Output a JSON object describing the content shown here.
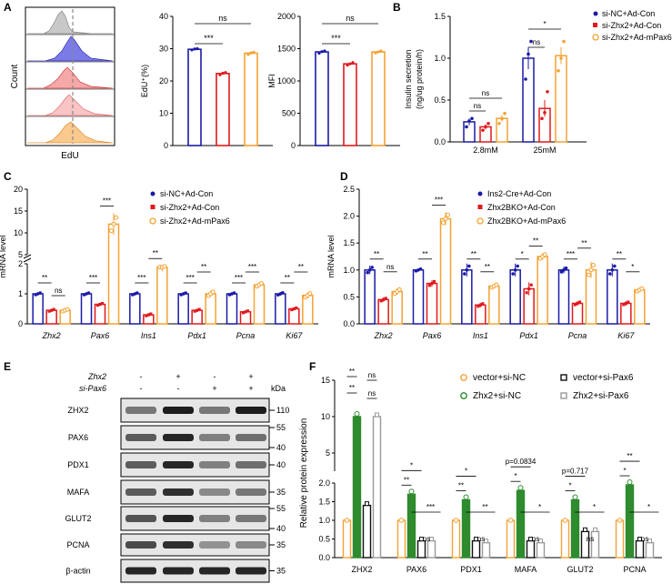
{
  "panel_letters": [
    "A",
    "B",
    "C",
    "D",
    "E",
    "F"
  ],
  "panel_a": {
    "hist_xlabel": "EdU",
    "hist_ylabel": "Count"
  },
  "chart_data": [
    {
      "id": "A_edu",
      "type": "bar",
      "ylabel": "EdU⁺(%)",
      "ylim": [
        0,
        40
      ],
      "yticks": [
        "0",
        "10",
        "20",
        "30",
        "40"
      ],
      "series": [
        {
          "name": "si-NC+Ad-Con",
          "color": "#1a1aa6",
          "value": 29.8,
          "err": 0.3,
          "points": [
            29.6,
            29.9,
            30.0
          ]
        },
        {
          "name": "si-Zhx2+Ad-Con",
          "color": "#e0191c",
          "value": 22.3,
          "err": 0.4,
          "points": [
            21.9,
            22.4,
            22.6
          ]
        },
        {
          "name": "si-Zhx2+Ad-mPax6",
          "color": "#f4a233",
          "value": 28.6,
          "err": 0.4,
          "points": [
            28.2,
            28.7,
            28.9
          ]
        }
      ],
      "sig": [
        {
          "from": 0,
          "to": 1,
          "label": "***"
        },
        {
          "from": 0,
          "to": 2,
          "label": "ns"
        }
      ]
    },
    {
      "id": "A_mfi",
      "type": "bar",
      "ylabel": "MFI",
      "ylim": [
        0,
        2000
      ],
      "yticks": [
        "0",
        "500",
        "1000",
        "1500",
        "2000"
      ],
      "series": [
        {
          "name": "si-NC+Ad-Con",
          "color": "#1a1aa6",
          "value": 1450,
          "err": 20,
          "points": [
            1430,
            1455,
            1465
          ]
        },
        {
          "name": "si-Zhx2+Ad-Con",
          "color": "#e0191c",
          "value": 1265,
          "err": 20,
          "points": [
            1245,
            1265,
            1285
          ]
        },
        {
          "name": "si-Zhx2+Ad-mPax6",
          "color": "#f4a233",
          "value": 1450,
          "err": 15,
          "points": [
            1435,
            1450,
            1465
          ]
        }
      ],
      "sig": [
        {
          "from": 0,
          "to": 1,
          "label": "***"
        },
        {
          "from": 0,
          "to": 2,
          "label": "ns"
        }
      ]
    },
    {
      "id": "B",
      "type": "bar",
      "ylabel": "Insulin secretion\n(ng/ug protein/h)",
      "ylim": [
        0,
        1.5
      ],
      "yticks": [
        "0.0",
        "0.5",
        "1.0",
        "1.5"
      ],
      "categories": [
        "2.8mM",
        "25mM"
      ],
      "series": [
        {
          "name": "si-NC+Ad-Con",
          "color": "#1a1aa6",
          "values": [
            0.24,
            1.0
          ],
          "err": [
            0.04,
            0.13
          ],
          "points": [
            [
              0.18,
              0.25,
              0.28
            ],
            [
              0.75,
              1.05,
              1.2
            ]
          ]
        },
        {
          "name": "si-Zhx2+Ad-Con",
          "color": "#e0191c",
          "values": [
            0.18,
            0.4
          ],
          "err": [
            0.03,
            0.1
          ],
          "points": [
            [
              0.14,
              0.18,
              0.22
            ],
            [
              0.28,
              0.35,
              0.6
            ]
          ]
        },
        {
          "name": "si-Zhx2+Ad-mPax6",
          "color": "#f4a233",
          "values": [
            0.28,
            1.03
          ],
          "err": [
            0.04,
            0.1
          ],
          "points": [
            [
              0.22,
              0.28,
              0.34
            ],
            [
              0.85,
              1.0,
              1.2
            ]
          ]
        }
      ],
      "legend": [
        "si-NC+Ad-Con",
        "si-Zhx2+Ad-Con",
        "si-Zhx2+Ad-mPax6"
      ],
      "sig_labels": [
        "ns",
        "ns",
        "ns",
        "*"
      ]
    },
    {
      "id": "C",
      "type": "bar",
      "ylabel": "mRNA level",
      "ylim_low": [
        0,
        2
      ],
      "ylim_high": [
        5,
        20
      ],
      "yticks_low": [
        "0",
        "1",
        "2"
      ],
      "yticks_high": [
        "5",
        "10",
        "15",
        "20"
      ],
      "categories": [
        "Zhx2",
        "Pax6",
        "Ins1",
        "Pdx1",
        "Pcna",
        "Ki67"
      ],
      "series": [
        {
          "name": "si-NC+Ad-Con",
          "color": "#1a1aa6",
          "values": [
            1.0,
            1.0,
            1.0,
            1.0,
            1.0,
            1.0
          ],
          "err": [
            0.05,
            0.05,
            0.05,
            0.05,
            0.05,
            0.06
          ]
        },
        {
          "name": "si-Zhx2+Ad-Con",
          "color": "#e0191c",
          "values": [
            0.45,
            0.65,
            0.3,
            0.45,
            0.4,
            0.5
          ],
          "err": [
            0.05,
            0.05,
            0.05,
            0.05,
            0.05,
            0.05
          ]
        },
        {
          "name": "si-Zhx2+Ad-mPax6",
          "color": "#f4a233",
          "values": [
            0.45,
            12.0,
            2.1,
            1.0,
            1.3,
            0.95
          ],
          "err": [
            0.05,
            2.5,
            0.35,
            0.1,
            0.08,
            0.1
          ]
        }
      ],
      "legend": [
        "si-NC+Ad-Con",
        "si-Zhx2+Ad-Con",
        "si-Zhx2+Ad-mPax6"
      ],
      "sig": [
        [
          "**",
          "ns"
        ],
        [
          "***",
          "***"
        ],
        [
          "***",
          "**"
        ],
        [
          "***",
          "**"
        ],
        [
          "***",
          "***"
        ],
        [
          "**",
          "**"
        ]
      ]
    },
    {
      "id": "D",
      "type": "bar",
      "ylabel": "mRNA level",
      "ylim": [
        0,
        2.5
      ],
      "yticks": [
        "0.0",
        "0.5",
        "1.0",
        "1.5",
        "2.0",
        "2.5"
      ],
      "categories": [
        "Zhx2",
        "Pax6",
        "Ins1",
        "Pdx1",
        "Pcna",
        "Ki67"
      ],
      "series": [
        {
          "name": "Ins2-Cre+Ad-Con",
          "color": "#1a1aa6",
          "values": [
            1.0,
            1.0,
            1.0,
            1.0,
            1.0,
            1.0
          ],
          "err": [
            0.08,
            0.03,
            0.12,
            0.12,
            0.06,
            0.12
          ]
        },
        {
          "name": "Zhx2BKO+Ad-Con",
          "color": "#e0191c",
          "values": [
            0.45,
            0.75,
            0.35,
            0.65,
            0.38,
            0.38
          ],
          "err": [
            0.04,
            0.06,
            0.04,
            0.12,
            0.04,
            0.04
          ]
        },
        {
          "name": "Zhx2BKO+Ad-mPax6",
          "color": "#f4a233",
          "values": [
            0.6,
            1.95,
            0.7,
            1.25,
            1.0,
            0.63
          ],
          "err": [
            0.06,
            0.12,
            0.04,
            0.06,
            0.15,
            0.04
          ]
        }
      ],
      "legend": [
        "Ins2-Cre+Ad-Con",
        "Zhx2BKO+Ad-Con",
        "Zhx2BKO+Ad-mPax6"
      ],
      "sig": [
        [
          "**",
          "ns"
        ],
        [
          "**",
          "***"
        ],
        [
          "**",
          "**"
        ],
        [
          "*",
          "**"
        ],
        [
          "***",
          "**"
        ],
        [
          "**",
          "*"
        ]
      ]
    },
    {
      "id": "F",
      "type": "bar",
      "ylabel": "Relative protein expression",
      "ylim_low": [
        0,
        2.0
      ],
      "ylim_high": [
        2.5,
        15
      ],
      "yticks_low": [
        "0.0",
        "0.5",
        "1.0",
        "1.5",
        "2.0"
      ],
      "yticks_high": [
        "5",
        "10",
        "15"
      ],
      "categories": [
        "ZHX2",
        "PAX6",
        "PDX1",
        "MAFA",
        "GLUT2",
        "PCNA"
      ],
      "series": [
        {
          "name": "vector+si-NC",
          "color": "#f4a233",
          "values": [
            1.0,
            1.0,
            1.0,
            1.0,
            1.0,
            1.0
          ]
        },
        {
          "name": "Zhx2+si-NC",
          "color": "#2e8b2e",
          "values": [
            10.0,
            1.7,
            1.55,
            1.8,
            1.55,
            1.95
          ]
        },
        {
          "name": "vector+si-Pax6",
          "color": "#111111",
          "values": [
            1.4,
            0.45,
            0.45,
            0.45,
            0.7,
            0.45
          ]
        },
        {
          "name": "Zhx2+si-Pax6",
          "color": "#9a9a9a",
          "values": [
            10.0,
            0.45,
            0.4,
            0.4,
            0.7,
            0.4
          ]
        }
      ],
      "legend": [
        "vector+si-NC",
        "vector+si-Pax6",
        "Zhx2+si-NC",
        "Zhx2+si-Pax6"
      ],
      "sig": [
        [
          "**",
          "**",
          "ns",
          "ns"
        ],
        [
          "**",
          "*",
          "***",
          "ns"
        ],
        [
          "**",
          "*",
          "**",
          "ns"
        ],
        [
          "*",
          "p=0.0834",
          "*",
          "ns"
        ],
        [
          "*",
          "p=0.717",
          "*",
          "ns"
        ],
        [
          "*",
          "**",
          "*",
          "ns"
        ]
      ]
    }
  ],
  "panel_e": {
    "header_row1_label": "Zhx2",
    "header_row2_label": "si-Pax6",
    "header_row1": [
      "-",
      "+",
      "-",
      "+"
    ],
    "header_row2": [
      "-",
      "-",
      "+",
      "+"
    ],
    "kda_label": "kDa",
    "bands": [
      {
        "name": "ZHX2",
        "markers": [
          "110"
        ]
      },
      {
        "name": "PAX6",
        "markers": [
          "55",
          "40"
        ]
      },
      {
        "name": "PDX1",
        "markers": [
          "40"
        ]
      },
      {
        "name": "MAFA",
        "markers": [
          "35"
        ]
      },
      {
        "name": "GLUT2",
        "markers": [
          "55",
          "40"
        ]
      },
      {
        "name": "PCNA",
        "markers": [
          "35"
        ]
      },
      {
        "name": "β-actin",
        "markers": [
          "35"
        ]
      }
    ]
  }
}
